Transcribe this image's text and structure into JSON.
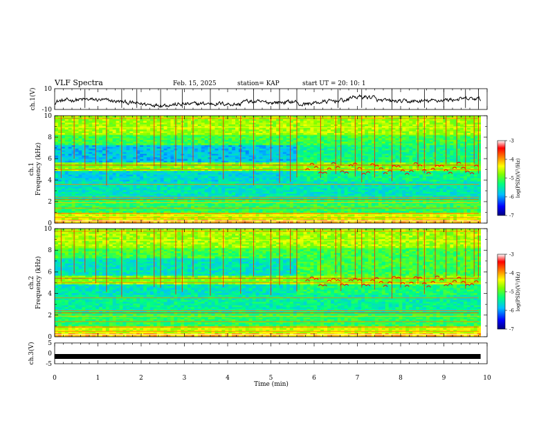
{
  "header": {
    "title": "VLF Spectra",
    "date": "Feb. 15, 2025",
    "station": "station= KAP",
    "start": "start  UT  =   20: 10: 1"
  },
  "chart_data": [
    {
      "type": "line",
      "name": "ch1-waveform",
      "ylabel": "ch.1(V)",
      "ylim": [
        -10,
        10
      ],
      "yticks": [
        "10",
        "-10"
      ],
      "xlim": [
        0,
        10
      ],
      "data_end_min": 9.85,
      "description_values": "noisy waveform, mean about -4 V rising to about +5 V near 9.8 min"
    },
    {
      "type": "heatmap",
      "name": "ch1-spectrogram",
      "ylabel_top": "ch.1",
      "ylabel": "Frequency (kHz)",
      "ylim": [
        0,
        10
      ],
      "yticks": [
        "0",
        "2",
        "4",
        "6",
        "8",
        "10"
      ],
      "xlim": [
        0,
        10
      ],
      "colorbar": {
        "label": "log(PSD)(V²/Hz)",
        "range": [
          -7,
          -3
        ],
        "ticks": [
          "-3",
          "-4",
          "-5",
          "-6",
          "-7"
        ]
      }
    },
    {
      "type": "heatmap",
      "name": "ch2-spectrogram",
      "ylabel_top": "ch.2",
      "ylabel": "Frequency (kHz)",
      "ylim": [
        0,
        10
      ],
      "yticks": [
        "0",
        "2",
        "4",
        "6",
        "8",
        "10"
      ],
      "xlim": [
        0,
        10
      ],
      "colorbar": {
        "label": "log(PSD)(V²/Hz)",
        "range": [
          -7,
          -3
        ],
        "ticks": [
          "-3",
          "-4",
          "-5",
          "-6",
          "-7"
        ]
      }
    },
    {
      "type": "line",
      "name": "ch3-waveform",
      "ylabel": "ch.3(V)",
      "ylim": [
        -5,
        5
      ],
      "yticks": [
        "5",
        "0",
        "-5"
      ],
      "xlim": [
        0,
        10
      ],
      "level": -1.5,
      "data_end_min": 9.85
    }
  ],
  "x_axis": {
    "label": "Time  (min)",
    "ticks": [
      "0",
      "1",
      "2",
      "3",
      "4",
      "5",
      "6",
      "7",
      "8",
      "9",
      "10"
    ]
  },
  "colors": {
    "colormap": [
      "#00007f",
      "#0000ff",
      "#00bfff",
      "#00ff7f",
      "#7fff00",
      "#ffff00",
      "#ff7f00",
      "#ff0000",
      "#ffffff"
    ]
  }
}
